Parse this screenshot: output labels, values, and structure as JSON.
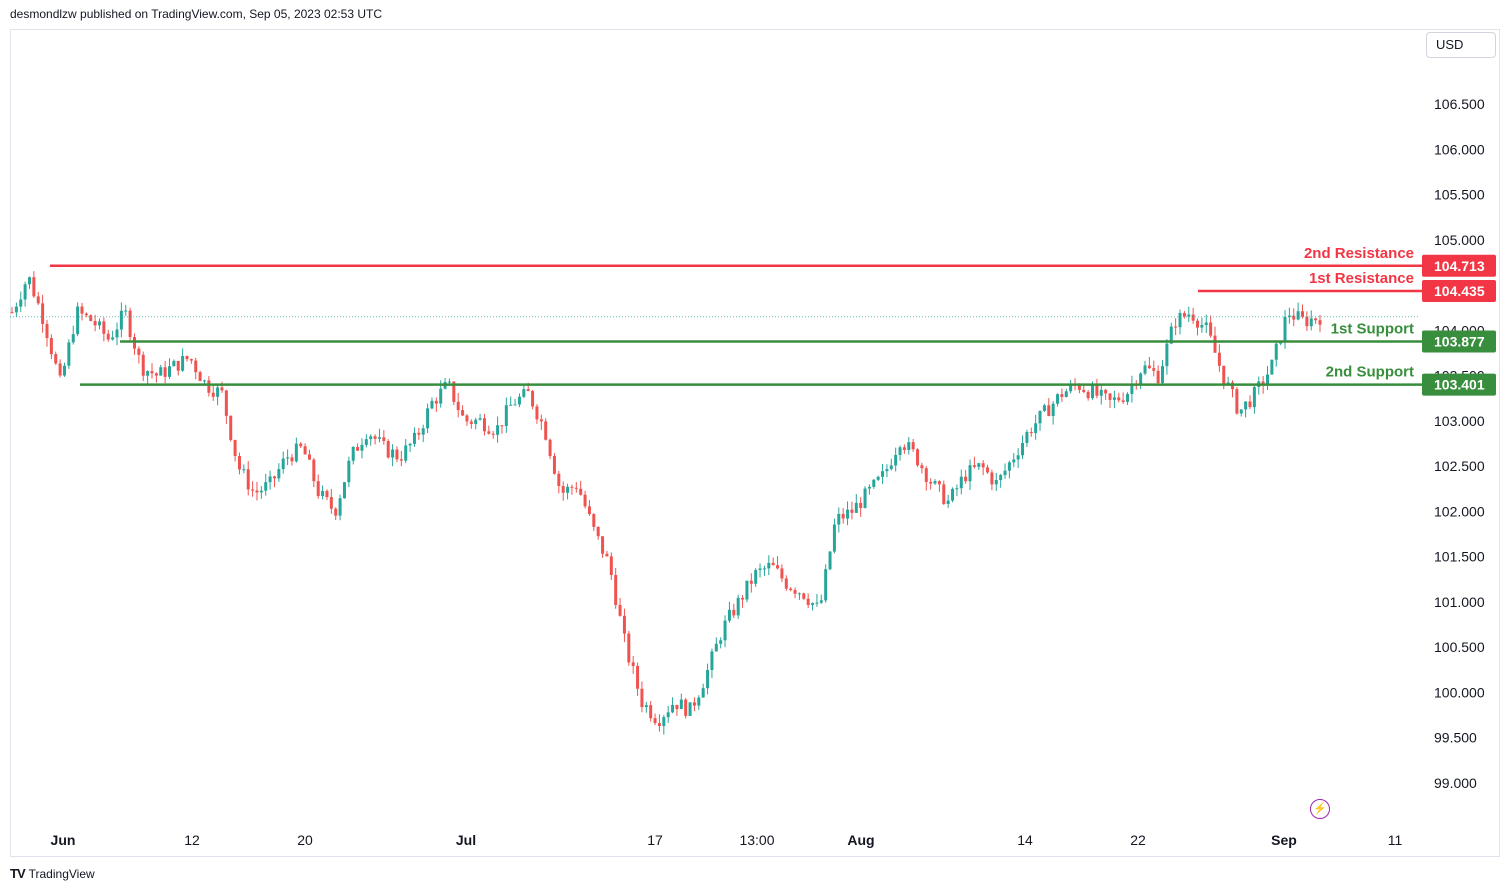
{
  "header": {
    "publisher_text": "desmondlzw published on TradingView.com, Sep 05, 2023 02:53 UTC"
  },
  "footer": {
    "brand_text": "TradingView"
  },
  "toolbar": {
    "currency_label": "USD"
  },
  "colors": {
    "up": "#26a69a",
    "down": "#ef5350",
    "resistance": "#f23645",
    "support": "#388e3c",
    "grid": "#e0e3eb",
    "text": "#131722"
  },
  "chart_data": {
    "type": "candlestick",
    "title": "",
    "ylabel": "USD",
    "ylim": [
      98.8,
      106.9
    ],
    "y_ticks": [
      "106.500",
      "106.000",
      "105.500",
      "105.000",
      "104.500",
      "104.000",
      "103.500",
      "103.000",
      "102.500",
      "102.000",
      "101.500",
      "101.000",
      "100.500",
      "100.000",
      "99.500",
      "99.000"
    ],
    "x_ticks": [
      "Jun",
      "12",
      "20",
      "Jul",
      "17",
      "13:00",
      "Aug",
      "14",
      "22",
      "Sep",
      "11"
    ],
    "x_tick_bold": [
      "Jun",
      "Jul",
      "Aug",
      "Sep"
    ],
    "levels": [
      {
        "name": "2nd Resistance",
        "value": 104.713,
        "value_label": "104.713",
        "kind": "resistance"
      },
      {
        "name": "1st Resistance",
        "value": 104.435,
        "value_label": "104.435",
        "kind": "resistance"
      },
      {
        "name": "1st Support",
        "value": 103.877,
        "value_label": "103.877",
        "kind": "support"
      },
      {
        "name": "2nd Support",
        "value": 103.401,
        "value_label": "103.401",
        "kind": "support"
      }
    ],
    "price_path": [
      104.2,
      104.6,
      104.1,
      103.4,
      104.2,
      104.1,
      103.9,
      104.2,
      103.6,
      103.5,
      103.6,
      103.7,
      103.4,
      103.3,
      102.5,
      102.2,
      102.3,
      102.6,
      102.7,
      102.2,
      102.0,
      102.6,
      102.9,
      102.7,
      102.6,
      102.8,
      103.2,
      103.4,
      103.0,
      103.0,
      102.9,
      103.2,
      103.3,
      102.9,
      102.2,
      102.3,
      101.8,
      101.4,
      100.5,
      99.9,
      99.7,
      99.9,
      99.8,
      100.2,
      100.7,
      101.0,
      101.3,
      101.4,
      101.2,
      101.1,
      100.9,
      101.9,
      102.0,
      102.2,
      102.4,
      102.8,
      102.6,
      102.3,
      102.1,
      102.4,
      102.5,
      102.3,
      102.6,
      102.9,
      103.1,
      103.3,
      103.4,
      103.3,
      103.2,
      103.3,
      103.6,
      103.5,
      104.1,
      104.2,
      104.0,
      103.5,
      103.1,
      103.3,
      103.6,
      104.2,
      104.1,
      104.15
    ]
  }
}
